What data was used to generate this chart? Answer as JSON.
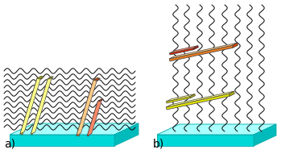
{
  "fig_width": 3.49,
  "fig_height": 1.91,
  "dpi": 100,
  "background": "#ffffff",
  "label_a": "a)",
  "label_b": "b)",
  "label_fontsize": 10,
  "substrate_color_face": "#00d8d8",
  "substrate_color_edge": "#00aaaa",
  "substrate_color_top": "#aaffff",
  "substrate_color_right": "#00bbbb",
  "bar_yellow_face": "#dddd00",
  "bar_yellow_side": "#aaaa00",
  "bar_yellow_top": "#ffff88",
  "bar_orange_face": "#e07820",
  "bar_orange_side": "#cc4400",
  "bar_orange_top": "#ffcc88",
  "bar_red_face": "#dd2200",
  "bar_red_side": "#aa1100",
  "bar_red_top": "#ff8866",
  "wave_color": "#111111",
  "wave_linewidth": 0.75
}
